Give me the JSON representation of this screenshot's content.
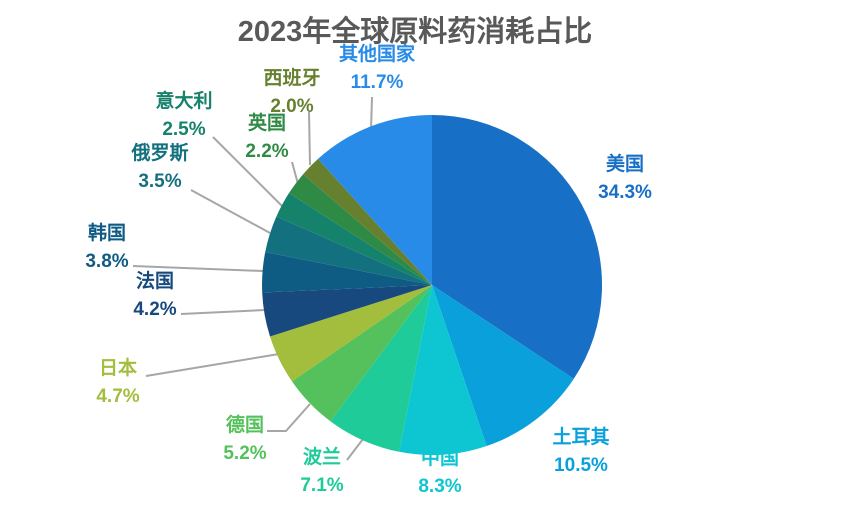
{
  "title": "2023年全球原料药消耗占比",
  "colors": {
    "title": "#595959",
    "background": "#ffffff",
    "leader_line": "#a6a6a6"
  },
  "chart_data": {
    "type": "pie",
    "title": "2023年全球原料药消耗占比",
    "unit": "%",
    "legend": "none",
    "labels_position": "outside-colored",
    "start_angle": "top",
    "direction": "clockwise",
    "categories": [
      "美国",
      "土耳其",
      "中国",
      "波兰",
      "德国",
      "日本",
      "法国",
      "韩国",
      "俄罗斯",
      "意大利",
      "英国",
      "西班牙",
      "其他国家"
    ],
    "values": [
      34.3,
      10.5,
      8.3,
      7.1,
      5.2,
      4.7,
      4.2,
      3.8,
      3.5,
      2.5,
      2.2,
      2.0,
      11.7
    ],
    "percent_labels": [
      "34.3%",
      "10.5%",
      "8.3%",
      "7.1%",
      "5.2%",
      "4.7%",
      "4.2%",
      "3.8%",
      "3.5%",
      "2.5%",
      "2.2%",
      "2.0%",
      "11.7%"
    ],
    "slice_colors": [
      "#176fc6",
      "#09a0dc",
      "#0ec6d2",
      "#1fcb98",
      "#55c15c",
      "#a3bd3c",
      "#17497e",
      "#0e5b83",
      "#13707f",
      "#15826b",
      "#2f8a45",
      "#66802f",
      "#288be8"
    ]
  }
}
